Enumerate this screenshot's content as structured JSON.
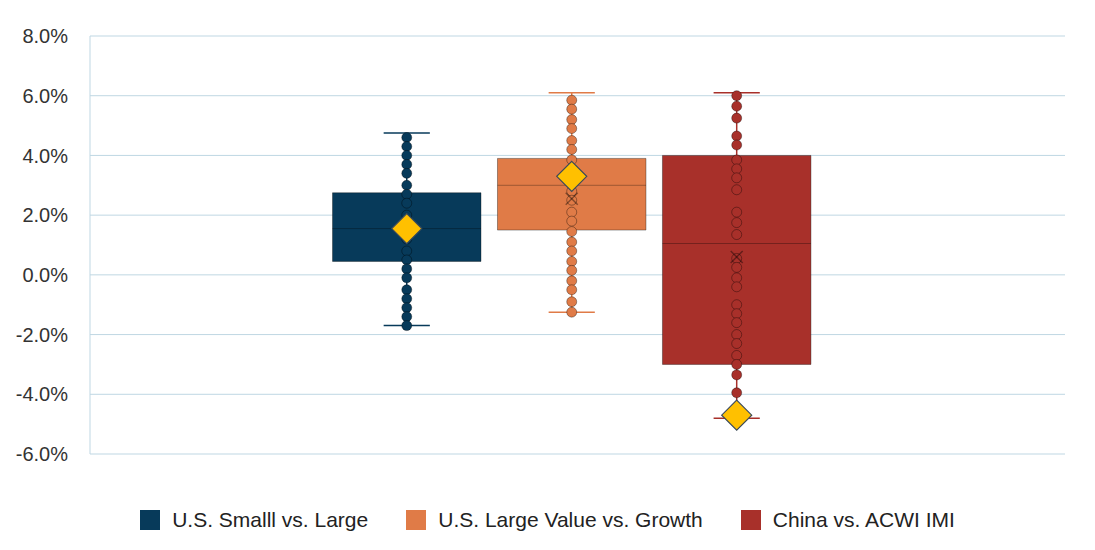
{
  "chart_data": {
    "type": "box",
    "ylim": [
      -6,
      8
    ],
    "yticks": [
      {
        "value": -6,
        "label": "-6.0%"
      },
      {
        "value": -4,
        "label": "-4.0%"
      },
      {
        "value": -2,
        "label": "-2.0%"
      },
      {
        "value": 0,
        "label": "0.0%"
      },
      {
        "value": 2,
        "label": "2.0%"
      },
      {
        "value": 4,
        "label": "4.0%"
      },
      {
        "value": 6,
        "label": "6.0%"
      },
      {
        "value": 8,
        "label": "8.0%"
      }
    ],
    "grid": true,
    "legend": "bottom",
    "series": [
      {
        "name": "U.S. Smalll vs. Large",
        "color": "#073A5A",
        "min": -1.7,
        "q1": 0.45,
        "median": 1.55,
        "q3": 2.75,
        "max": 4.75,
        "mean": 1.5,
        "highlight": 1.55,
        "values": [
          4.6,
          4.3,
          4.0,
          3.7,
          3.4,
          3.0,
          2.7,
          2.4,
          2.0,
          1.7,
          1.5,
          1.2,
          0.8,
          0.5,
          0.2,
          -0.1,
          -0.5,
          -0.8,
          -1.1,
          -1.4,
          -1.7
        ]
      },
      {
        "name": "U.S. Large Value vs. Growth",
        "color": "#E07B47",
        "min": -1.25,
        "q1": 1.5,
        "median": 3.0,
        "q3": 3.9,
        "max": 6.1,
        "mean": 2.55,
        "highlight": 3.3,
        "values": [
          5.85,
          5.55,
          5.2,
          4.9,
          4.5,
          4.2,
          3.85,
          3.5,
          3.15,
          2.8,
          2.5,
          2.1,
          1.8,
          1.45,
          1.1,
          0.8,
          0.45,
          0.15,
          -0.2,
          -0.5,
          -0.9,
          -1.25
        ]
      },
      {
        "name": "China vs. ACWI IMI",
        "color": "#A8302A",
        "min": -4.8,
        "q1": -3.0,
        "median": 1.05,
        "q3": 4.0,
        "max": 6.1,
        "mean": 0.6,
        "highlight": -4.7,
        "values": [
          6.0,
          5.65,
          5.25,
          4.65,
          4.35,
          3.85,
          3.55,
          3.25,
          2.85,
          2.1,
          1.75,
          1.35,
          0.55,
          0.25,
          -0.1,
          -0.4,
          -1.0,
          -1.3,
          -1.6,
          -2.0,
          -2.3,
          -2.7,
          -3.0,
          -3.35,
          -3.95,
          -4.7
        ]
      }
    ]
  }
}
